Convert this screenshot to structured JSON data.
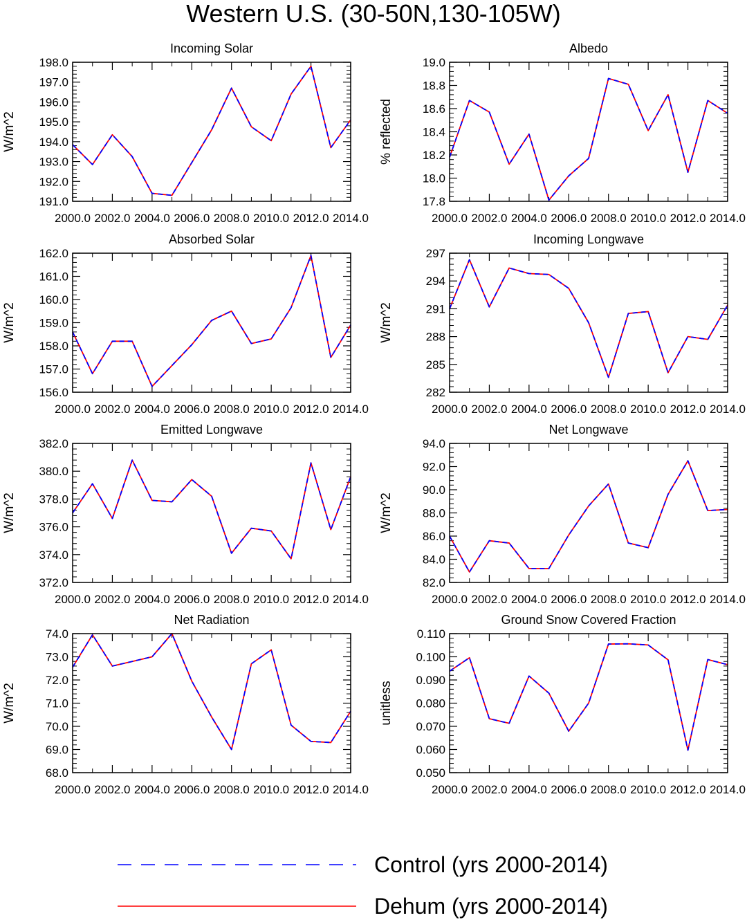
{
  "title": "Western U.S. (30-50N,130-105W)",
  "legend": [
    {
      "label": "Control (yrs 2000-2014)",
      "color": "#0000ff",
      "style": "dashed"
    },
    {
      "label": "Dehum (yrs 2000-2014)",
      "color": "#ff0000",
      "style": "solid"
    }
  ],
  "chart_data": [
    {
      "type": "line",
      "title": "Incoming Solar",
      "ylabel": "W/m^2",
      "xlabel": "",
      "xlim": [
        2000,
        2014
      ],
      "ylim": [
        191,
        198
      ],
      "xticks": [
        2000,
        2002,
        2004,
        2006,
        2008,
        2010,
        2012,
        2014
      ],
      "xticklabels": [
        "2000.0",
        "2002.0",
        "2004.0",
        "2006.0",
        "2008.0",
        "2010.0",
        "2012.0",
        "2014.0"
      ],
      "yticks": [
        191,
        192,
        193,
        194,
        195,
        196,
        197,
        198
      ],
      "yticklabels": [
        "191.0",
        "192.0",
        "193.0",
        "194.0",
        "195.0",
        "196.0",
        "197.0",
        "198.0"
      ],
      "x": [
        2000,
        2001,
        2002,
        2003,
        2004,
        2005,
        2006,
        2007,
        2008,
        2009,
        2010,
        2011,
        2012,
        2013,
        2014
      ],
      "series": [
        {
          "name": "Control (yrs 2000-2014)",
          "values": [
            193.85,
            192.85,
            194.35,
            193.25,
            191.4,
            191.3,
            192.95,
            194.6,
            196.7,
            194.75,
            194.05,
            196.4,
            197.8,
            193.7,
            195.1
          ]
        },
        {
          "name": "Dehum (yrs 2000-2014)",
          "values": [
            193.85,
            192.85,
            194.35,
            193.25,
            191.4,
            191.3,
            192.95,
            194.6,
            196.7,
            194.75,
            194.05,
            196.4,
            197.8,
            193.7,
            195.1
          ]
        }
      ]
    },
    {
      "type": "line",
      "title": "Albedo",
      "ylabel": "% reflected",
      "xlabel": "",
      "xlim": [
        2000,
        2014
      ],
      "ylim": [
        17.8,
        19.0
      ],
      "xticks": [
        2000,
        2002,
        2004,
        2006,
        2008,
        2010,
        2012,
        2014
      ],
      "xticklabels": [
        "2000.0",
        "2002.0",
        "2004.0",
        "2006.0",
        "2008.0",
        "2010.0",
        "2012.0",
        "2014.0"
      ],
      "yticks": [
        17.8,
        18.0,
        18.2,
        18.4,
        18.6,
        18.8,
        19.0
      ],
      "yticklabels": [
        "17.8",
        "18.0",
        "18.2",
        "18.4",
        "18.6",
        "18.8",
        "19.0"
      ],
      "x": [
        2000,
        2001,
        2002,
        2003,
        2004,
        2005,
        2006,
        2007,
        2008,
        2009,
        2010,
        2011,
        2012,
        2013,
        2014
      ],
      "series": [
        {
          "name": "Control (yrs 2000-2014)",
          "values": [
            18.18,
            18.67,
            18.57,
            18.12,
            18.38,
            17.81,
            18.02,
            18.17,
            18.86,
            18.81,
            18.41,
            18.72,
            18.05,
            18.67,
            18.56
          ]
        },
        {
          "name": "Dehum (yrs 2000-2014)",
          "values": [
            18.18,
            18.67,
            18.57,
            18.12,
            18.38,
            17.81,
            18.02,
            18.17,
            18.86,
            18.81,
            18.41,
            18.72,
            18.05,
            18.67,
            18.56
          ]
        }
      ]
    },
    {
      "type": "line",
      "title": "Absorbed Solar",
      "ylabel": "W/m^2",
      "xlabel": "",
      "xlim": [
        2000,
        2014
      ],
      "ylim": [
        156,
        162
      ],
      "xticks": [
        2000,
        2002,
        2004,
        2006,
        2008,
        2010,
        2012,
        2014
      ],
      "xticklabels": [
        "2000.0",
        "2002.0",
        "2004.0",
        "2006.0",
        "2008.0",
        "2010.0",
        "2012.0",
        "2014.0"
      ],
      "yticks": [
        156,
        157,
        158,
        159,
        160,
        161,
        162
      ],
      "yticklabels": [
        "156.0",
        "157.0",
        "158.0",
        "159.0",
        "160.0",
        "161.0",
        "162.0"
      ],
      "x": [
        2000,
        2001,
        2002,
        2003,
        2004,
        2005,
        2006,
        2007,
        2008,
        2009,
        2010,
        2011,
        2012,
        2013,
        2014
      ],
      "series": [
        {
          "name": "Control (yrs 2000-2014)",
          "values": [
            158.6,
            156.8,
            158.2,
            158.2,
            156.25,
            157.15,
            158.05,
            159.1,
            159.5,
            158.1,
            158.3,
            159.65,
            161.9,
            157.5,
            158.9
          ]
        },
        {
          "name": "Dehum (yrs 2000-2014)",
          "values": [
            158.6,
            156.8,
            158.2,
            158.2,
            156.25,
            157.15,
            158.05,
            159.1,
            159.5,
            158.1,
            158.3,
            159.65,
            161.9,
            157.5,
            158.9
          ]
        }
      ]
    },
    {
      "type": "line",
      "title": "Incoming Longwave",
      "ylabel": "W/m^2",
      "xlabel": "",
      "xlim": [
        2000,
        2014
      ],
      "ylim": [
        282,
        297
      ],
      "xticks": [
        2000,
        2002,
        2004,
        2006,
        2008,
        2010,
        2012,
        2014
      ],
      "xticklabels": [
        "2000.0",
        "2002.0",
        "2004.0",
        "2006.0",
        "2008.0",
        "2010.0",
        "2012.0",
        "2014.0"
      ],
      "yticks": [
        282,
        285,
        288,
        291,
        294,
        297
      ],
      "yticklabels": [
        "282",
        "285",
        "288",
        "291",
        "294",
        "297"
      ],
      "x": [
        2000,
        2001,
        2002,
        2003,
        2004,
        2005,
        2006,
        2007,
        2008,
        2009,
        2010,
        2011,
        2012,
        2013,
        2014
      ],
      "series": [
        {
          "name": "Control (yrs 2000-2014)",
          "values": [
            291.0,
            296.3,
            291.2,
            295.4,
            294.8,
            294.7,
            293.2,
            289.5,
            283.6,
            290.5,
            290.7,
            284.1,
            288.0,
            287.7,
            291.4
          ]
        },
        {
          "name": "Dehum (yrs 2000-2014)",
          "values": [
            291.0,
            296.3,
            291.2,
            295.4,
            294.8,
            294.7,
            293.2,
            289.5,
            283.6,
            290.5,
            290.7,
            284.1,
            288.0,
            287.7,
            291.4
          ]
        }
      ]
    },
    {
      "type": "line",
      "title": "Emitted Longwave",
      "ylabel": "W/m^2",
      "xlabel": "",
      "xlim": [
        2000,
        2014
      ],
      "ylim": [
        372,
        382
      ],
      "xticks": [
        2000,
        2002,
        2004,
        2006,
        2008,
        2010,
        2012,
        2014
      ],
      "xticklabels": [
        "2000.0",
        "2002.0",
        "2004.0",
        "2006.0",
        "2008.0",
        "2010.0",
        "2012.0",
        "2014.0"
      ],
      "yticks": [
        372,
        374,
        376,
        378,
        380,
        382
      ],
      "yticklabels": [
        "372.0",
        "374.0",
        "376.0",
        "378.0",
        "380.0",
        "382.0"
      ],
      "x": [
        2000,
        2001,
        2002,
        2003,
        2004,
        2005,
        2006,
        2007,
        2008,
        2009,
        2010,
        2011,
        2012,
        2013,
        2014
      ],
      "series": [
        {
          "name": "Control (yrs 2000-2014)",
          "values": [
            377.0,
            379.1,
            376.6,
            380.8,
            377.9,
            377.8,
            379.4,
            378.2,
            374.1,
            375.9,
            375.7,
            373.7,
            380.6,
            375.8,
            379.6
          ]
        },
        {
          "name": "Dehum (yrs 2000-2014)",
          "values": [
            377.0,
            379.1,
            376.6,
            380.8,
            377.9,
            377.8,
            379.4,
            378.2,
            374.1,
            375.9,
            375.7,
            373.7,
            380.6,
            375.8,
            379.6
          ]
        }
      ]
    },
    {
      "type": "line",
      "title": "Net Longwave",
      "ylabel": "W/m^2",
      "xlabel": "",
      "xlim": [
        2000,
        2014
      ],
      "ylim": [
        82,
        94
      ],
      "xticks": [
        2000,
        2002,
        2004,
        2006,
        2008,
        2010,
        2012,
        2014
      ],
      "xticklabels": [
        "2000.0",
        "2002.0",
        "2004.0",
        "2006.0",
        "2008.0",
        "2010.0",
        "2012.0",
        "2014.0"
      ],
      "yticks": [
        82,
        84,
        86,
        88,
        90,
        92,
        94
      ],
      "yticklabels": [
        "82.0",
        "84.0",
        "86.0",
        "88.0",
        "90.0",
        "92.0",
        "94.0"
      ],
      "x": [
        2000,
        2001,
        2002,
        2003,
        2004,
        2005,
        2006,
        2007,
        2008,
        2009,
        2010,
        2011,
        2012,
        2013,
        2014
      ],
      "series": [
        {
          "name": "Control (yrs 2000-2014)",
          "values": [
            86.0,
            82.9,
            85.6,
            85.4,
            83.2,
            83.2,
            86.1,
            88.6,
            90.5,
            85.4,
            85.0,
            89.6,
            92.5,
            88.2,
            88.3
          ]
        },
        {
          "name": "Dehum (yrs 2000-2014)",
          "values": [
            86.0,
            82.9,
            85.6,
            85.4,
            83.2,
            83.2,
            86.1,
            88.6,
            90.5,
            85.4,
            85.0,
            89.6,
            92.5,
            88.2,
            88.3
          ]
        }
      ]
    },
    {
      "type": "line",
      "title": "Net Radiation",
      "ylabel": "W/m^2",
      "xlabel": "",
      "xlim": [
        2000,
        2014
      ],
      "ylim": [
        68,
        74
      ],
      "xticks": [
        2000,
        2002,
        2004,
        2006,
        2008,
        2010,
        2012,
        2014
      ],
      "xticklabels": [
        "2000.0",
        "2002.0",
        "2004.0",
        "2006.0",
        "2008.0",
        "2010.0",
        "2012.0",
        "2014.0"
      ],
      "yticks": [
        68,
        69,
        70,
        71,
        72,
        73,
        74
      ],
      "yticklabels": [
        "68.0",
        "69.0",
        "70.0",
        "71.0",
        "72.0",
        "73.0",
        "74.0"
      ],
      "x": [
        2000,
        2001,
        2002,
        2003,
        2004,
        2005,
        2006,
        2007,
        2008,
        2009,
        2010,
        2011,
        2012,
        2013,
        2014
      ],
      "series": [
        {
          "name": "Control (yrs 2000-2014)",
          "values": [
            72.55,
            73.95,
            72.6,
            72.8,
            73.0,
            74.0,
            71.95,
            70.4,
            69.0,
            72.7,
            73.3,
            70.05,
            69.35,
            69.3,
            70.65
          ]
        },
        {
          "name": "Dehum (yrs 2000-2014)",
          "values": [
            72.55,
            73.95,
            72.6,
            72.8,
            73.0,
            74.0,
            71.95,
            70.4,
            69.0,
            72.7,
            73.3,
            70.05,
            69.35,
            69.3,
            70.65
          ]
        }
      ]
    },
    {
      "type": "line",
      "title": "Ground Snow Covered Fraction",
      "ylabel": "unitless",
      "xlabel": "",
      "xlim": [
        2000,
        2014
      ],
      "ylim": [
        0.05,
        0.11
      ],
      "xticks": [
        2000,
        2002,
        2004,
        2006,
        2008,
        2010,
        2012,
        2014
      ],
      "xticklabels": [
        "2000.0",
        "2002.0",
        "2004.0",
        "2006.0",
        "2008.0",
        "2010.0",
        "2012.0",
        "2014.0"
      ],
      "yticks": [
        0.05,
        0.06,
        0.07,
        0.08,
        0.09,
        0.1,
        0.11
      ],
      "yticklabels": [
        "0.050",
        "0.060",
        "0.070",
        "0.080",
        "0.090",
        "0.100",
        "0.110"
      ],
      "x": [
        2000,
        2001,
        2002,
        2003,
        2004,
        2005,
        2006,
        2007,
        2008,
        2009,
        2010,
        2011,
        2012,
        2013,
        2014
      ],
      "series": [
        {
          "name": "Control (yrs 2000-2014)",
          "values": [
            0.0938,
            0.0996,
            0.0733,
            0.0713,
            0.0917,
            0.0843,
            0.0679,
            0.08,
            0.1055,
            0.1056,
            0.1051,
            0.0987,
            0.0597,
            0.0988,
            0.0966
          ]
        },
        {
          "name": "Dehum (yrs 2000-2014)",
          "values": [
            0.0938,
            0.0996,
            0.0733,
            0.0713,
            0.0917,
            0.0843,
            0.0679,
            0.08,
            0.1055,
            0.1056,
            0.1051,
            0.0987,
            0.0597,
            0.0988,
            0.0966
          ]
        }
      ]
    }
  ]
}
